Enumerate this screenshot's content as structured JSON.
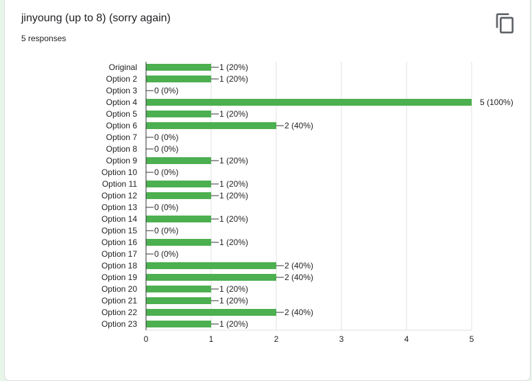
{
  "header": {
    "title": "jinyoung (up to 8) (sorry again)",
    "subtitle": "5 responses",
    "copy_icon": "copy-icon"
  },
  "colors": {
    "bar": "#4caf50",
    "grid": "#e0e0e0",
    "axis": "#333333",
    "text": "#222222"
  },
  "chart_data": {
    "type": "bar",
    "orientation": "horizontal",
    "categories": [
      "Original",
      "Option 2",
      "Option 3",
      "Option 4",
      "Option 5",
      "Option 6",
      "Option 7",
      "Option 8",
      "Option 9",
      "Option 10",
      "Option 11",
      "Option 12",
      "Option 13",
      "Option 14",
      "Option 15",
      "Option 16",
      "Option 17",
      "Option 18",
      "Option 19",
      "Option 20",
      "Option 21",
      "Option 22",
      "Option 23"
    ],
    "values": [
      1,
      1,
      0,
      5,
      1,
      2,
      0,
      0,
      1,
      0,
      1,
      1,
      0,
      1,
      0,
      1,
      0,
      2,
      2,
      1,
      1,
      2,
      1
    ],
    "data_labels": [
      "1 (20%)",
      "1 (20%)",
      "0 (0%)",
      "5 (100%)",
      "1 (20%)",
      "2 (40%)",
      "0 (0%)",
      "0 (0%)",
      "1 (20%)",
      "0 (0%)",
      "1 (20%)",
      "1 (20%)",
      "0 (0%)",
      "1 (20%)",
      "0 (0%)",
      "1 (20%)",
      "0 (0%)",
      "2 (40%)",
      "2 (40%)",
      "1 (20%)",
      "1 (20%)",
      "2 (40%)",
      "1 (20%)"
    ],
    "xticks": [
      0,
      1,
      2,
      3,
      4,
      5
    ],
    "xlim": [
      0,
      5
    ],
    "grid": true,
    "legend": "none"
  }
}
